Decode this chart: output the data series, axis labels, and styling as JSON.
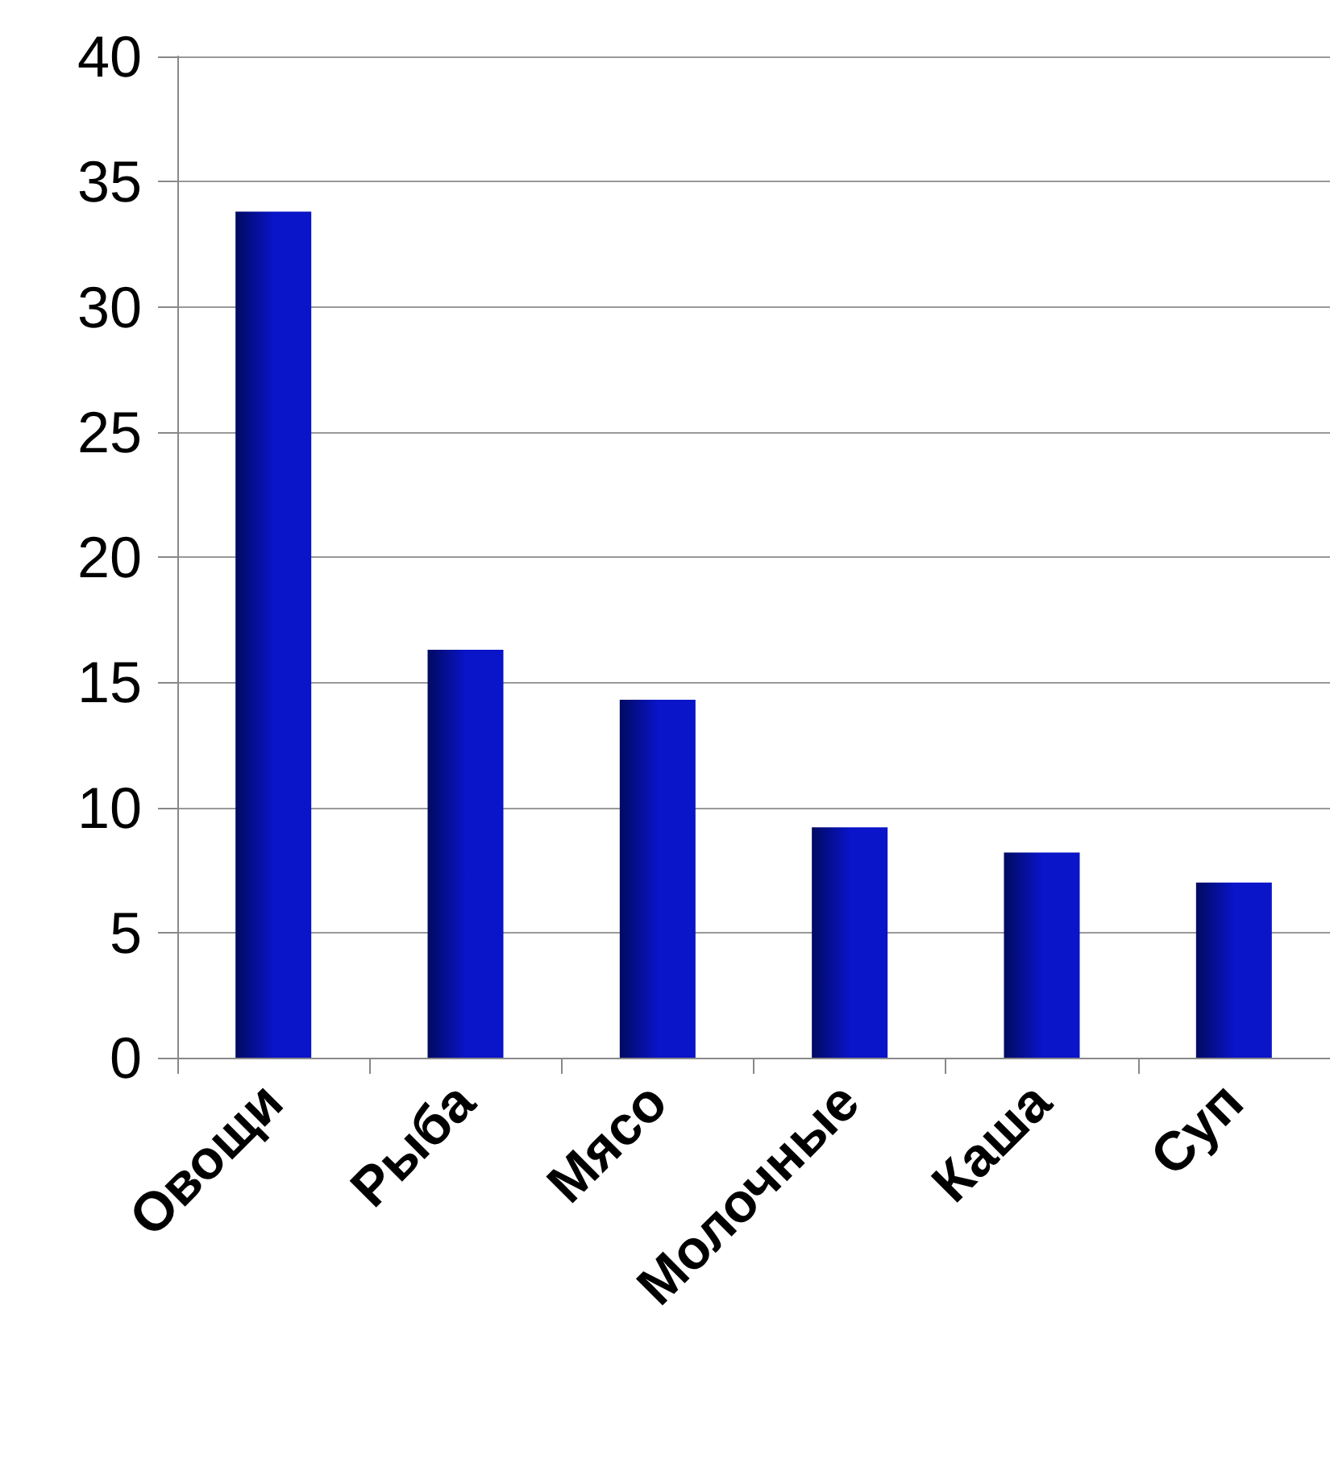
{
  "chart_data": {
    "type": "bar",
    "categories": [
      "Овощи",
      "Рыба",
      "Мясо",
      "Молочные",
      "Каша",
      "Суп"
    ],
    "values": [
      33.8,
      16.3,
      14.3,
      9.2,
      8.2,
      7.0
    ],
    "color": "#0a14c8",
    "ylim": [
      0,
      40
    ],
    "yticks": [
      0,
      5,
      10,
      15,
      20,
      25,
      30,
      35,
      40
    ],
    "grid": "y"
  }
}
